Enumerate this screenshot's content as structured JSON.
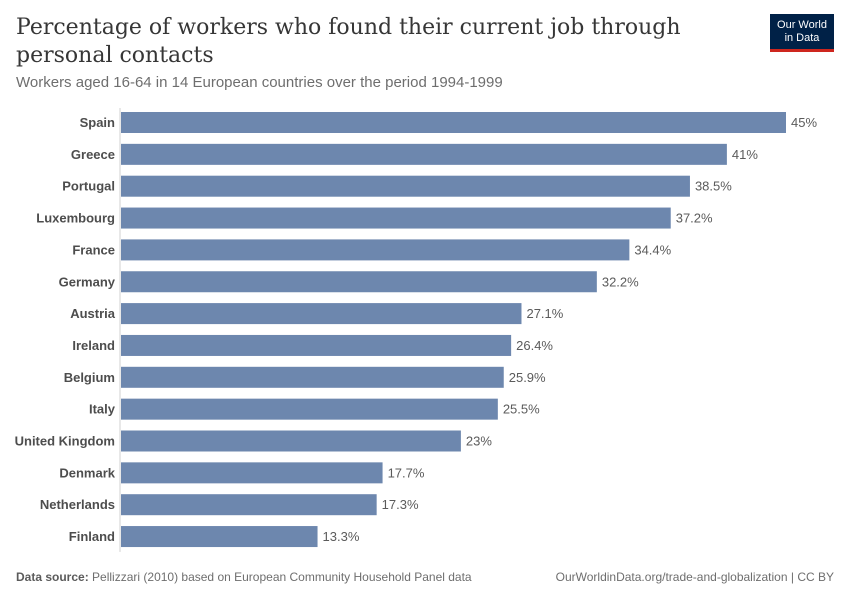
{
  "header": {
    "title": "Percentage of workers who found their current job through personal contacts",
    "subtitle": "Workers aged 16-64 in 14 European countries over the period 1994-1999",
    "logo_line1": "Our World",
    "logo_line2": "in Data"
  },
  "footer": {
    "source_label": "Data source:",
    "source_text": "Pellizzari (2010) based on European Community Household Panel data",
    "right_text": "OurWorldinData.org/trade-and-globalization | CC BY"
  },
  "colors": {
    "bar": "#6d87ae",
    "logo_bg": "#002147",
    "logo_accent": "#ce261e"
  },
  "chart_data": {
    "type": "bar",
    "orientation": "horizontal",
    "categories": [
      "Spain",
      "Greece",
      "Portugal",
      "Luxembourg",
      "France",
      "Germany",
      "Austria",
      "Ireland",
      "Belgium",
      "Italy",
      "United Kingdom",
      "Denmark",
      "Netherlands",
      "Finland"
    ],
    "values": [
      45,
      41,
      38.5,
      37.2,
      34.4,
      32.2,
      27.1,
      26.4,
      25.9,
      25.5,
      23,
      17.7,
      17.3,
      13.3
    ],
    "value_labels": [
      "45%",
      "41%",
      "38.5%",
      "37.2%",
      "34.4%",
      "32.2%",
      "27.1%",
      "26.4%",
      "25.9%",
      "25.5%",
      "23%",
      "17.7%",
      "17.3%",
      "13.3%"
    ],
    "xlim": [
      0,
      45
    ],
    "grid": false
  }
}
